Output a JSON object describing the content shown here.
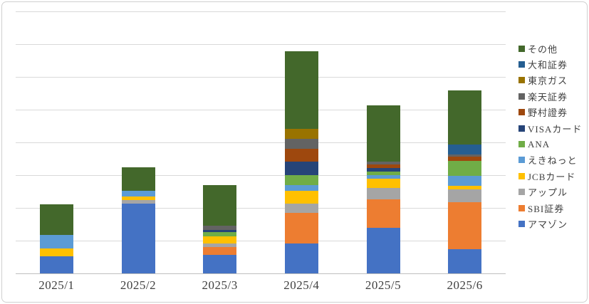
{
  "chart_data": {
    "type": "bar",
    "stacked": true,
    "title": "",
    "xlabel": "",
    "ylabel": "",
    "categories": [
      "2025/1",
      "2025/2",
      "2025/3",
      "2025/4",
      "2025/5",
      "2025/6"
    ],
    "y_axis": {
      "tick_labels_visible": false,
      "ylim": [
        0,
        8
      ],
      "gridline_interval": 1,
      "grid": true
    },
    "legend_position": "right",
    "legend_order_top_to_bottom": [
      "その他",
      "大和証券",
      "東京ガス",
      "楽天証券",
      "野村證券",
      "VISAカード",
      "ANA",
      "えきねっと",
      "JCBカード",
      "アップル",
      "SBI証券",
      "アマゾン"
    ],
    "series_bottom_to_top": [
      {
        "name": "アマゾン",
        "color": "#4472C4",
        "values": [
          0.52,
          2.14,
          0.56,
          0.91,
          1.4,
          0.73
        ]
      },
      {
        "name": "SBI証券",
        "color": "#ED7D31",
        "values": [
          0.0,
          0.0,
          0.25,
          0.94,
          0.86,
          1.45
        ]
      },
      {
        "name": "アップル",
        "color": "#A5A5A5",
        "values": [
          0.0,
          0.09,
          0.11,
          0.29,
          0.36,
          0.38
        ]
      },
      {
        "name": "JCBカード",
        "color": "#FFC000",
        "values": [
          0.24,
          0.12,
          0.22,
          0.38,
          0.27,
          0.12
        ]
      },
      {
        "name": "えきねっと",
        "color": "#5B9BD5",
        "values": [
          0.42,
          0.18,
          0.0,
          0.17,
          0.12,
          0.3
        ]
      },
      {
        "name": "ANA",
        "color": "#70AD47",
        "values": [
          0.0,
          0.0,
          0.13,
          0.32,
          0.11,
          0.45
        ]
      },
      {
        "name": "VISAカード",
        "color": "#264478",
        "values": [
          0.0,
          0.0,
          0.05,
          0.4,
          0.09,
          0.0
        ]
      },
      {
        "name": "野村證券",
        "color": "#9E480E",
        "values": [
          0.0,
          0.0,
          0.0,
          0.4,
          0.11,
          0.14
        ]
      },
      {
        "name": "楽天証券",
        "color": "#636363",
        "values": [
          0.0,
          0.0,
          0.14,
          0.3,
          0.09,
          0.06
        ]
      },
      {
        "name": "東京ガス",
        "color": "#997300",
        "values": [
          0.0,
          0.0,
          0.0,
          0.31,
          0.0,
          0.0
        ]
      },
      {
        "name": "大和証券",
        "color": "#255E91",
        "values": [
          0.0,
          0.0,
          0.0,
          0.0,
          0.0,
          0.3
        ]
      },
      {
        "name": "その他",
        "color": "#43682B",
        "values": [
          0.94,
          0.7,
          1.24,
          2.37,
          1.72,
          1.66
        ]
      }
    ],
    "style": {
      "gridline_color": "#d9d9d9",
      "axis_line_color": "#bfbfbf",
      "label_color": "#404040",
      "background": "#ffffff",
      "border_color": "#d0d0d0"
    }
  }
}
